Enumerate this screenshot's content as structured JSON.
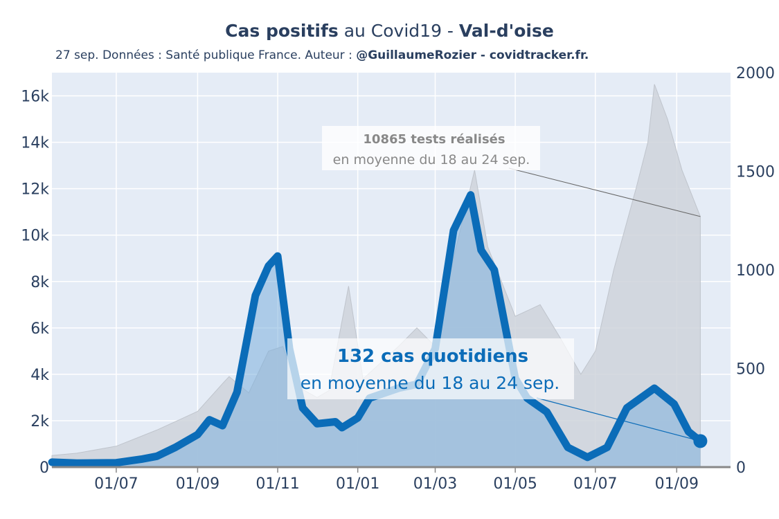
{
  "title": {
    "bold_1": "Cas positifs",
    "mid": " au Covid19 - ",
    "bold_2": "Val-d'oise"
  },
  "subtitle": {
    "plain": "27 sep. Données : Santé publique France. Auteur : ",
    "bold": "@GuillaumeRozier - covidtracker.fr."
  },
  "chart_data": {
    "type": "line",
    "x_axis": {
      "tick_labels": [
        "01/07",
        "01/09",
        "01/11",
        "01/01",
        "01/03",
        "01/05",
        "01/07",
        "01/09"
      ],
      "range": [
        "2020-05-13",
        "2021-10-12"
      ]
    },
    "y_left": {
      "tick_labels": [
        "0",
        "2k",
        "4k",
        "6k",
        "8k",
        "10k",
        "12k",
        "14k",
        "16k"
      ],
      "range": [
        0,
        17000
      ]
    },
    "y_right": {
      "tick_labels": [
        "0",
        "500",
        "1000",
        "1500",
        "2000"
      ],
      "range": [
        0,
        2000
      ]
    },
    "series": [
      {
        "axis": "left",
        "color": "#cfd3da",
        "points": [
          [
            "2020-05-13",
            500
          ],
          [
            "2020-06-01",
            600
          ],
          [
            "2020-07-01",
            900
          ],
          [
            "2020-08-01",
            1600
          ],
          [
            "2020-09-01",
            2400
          ],
          [
            "2020-09-20",
            3600
          ],
          [
            "2020-09-25",
            3900
          ],
          [
            "2020-10-10",
            3200
          ],
          [
            "2020-10-25",
            5000
          ],
          [
            "2020-11-05",
            5200
          ],
          [
            "2020-11-15",
            3500
          ],
          [
            "2020-12-01",
            3000
          ],
          [
            "2020-12-10",
            3300
          ],
          [
            "2020-12-25",
            7800
          ],
          [
            "2021-01-05",
            3800
          ],
          [
            "2021-02-01",
            5200
          ],
          [
            "2021-02-15",
            6000
          ],
          [
            "2021-03-01",
            5200
          ],
          [
            "2021-03-15",
            9000
          ],
          [
            "2021-03-31",
            12800
          ],
          [
            "2021-04-10",
            9500
          ],
          [
            "2021-05-01",
            6500
          ],
          [
            "2021-05-20",
            7000
          ],
          [
            "2021-06-05",
            5500
          ],
          [
            "2021-06-20",
            4000
          ],
          [
            "2021-07-01",
            5000
          ],
          [
            "2021-07-15",
            8500
          ],
          [
            "2021-08-01",
            12000
          ],
          [
            "2021-08-10",
            14000
          ],
          [
            "2021-08-15",
            16500
          ],
          [
            "2021-08-25",
            15000
          ],
          [
            "2021-09-05",
            12800
          ],
          [
            "2021-09-19",
            10800
          ]
        ]
      },
      {
        "axis": "right",
        "color": "#0b6cb8",
        "points": [
          [
            "2020-05-13",
            25
          ],
          [
            "2020-06-01",
            20
          ],
          [
            "2020-07-01",
            22
          ],
          [
            "2020-07-20",
            40
          ],
          [
            "2020-08-01",
            55
          ],
          [
            "2020-08-15",
            100
          ],
          [
            "2020-09-01",
            165
          ],
          [
            "2020-09-10",
            240
          ],
          [
            "2020-09-20",
            210
          ],
          [
            "2020-10-01",
            380
          ],
          [
            "2020-10-15",
            870
          ],
          [
            "2020-10-25",
            1020
          ],
          [
            "2020-11-01",
            1070
          ],
          [
            "2020-11-10",
            600
          ],
          [
            "2020-11-20",
            300
          ],
          [
            "2020-12-01",
            220
          ],
          [
            "2020-12-15",
            230
          ],
          [
            "2020-12-20",
            200
          ],
          [
            "2021-01-01",
            250
          ],
          [
            "2021-01-10",
            350
          ],
          [
            "2021-02-01",
            400
          ],
          [
            "2021-02-15",
            420
          ],
          [
            "2021-03-01",
            600
          ],
          [
            "2021-03-15",
            1200
          ],
          [
            "2021-03-28",
            1380
          ],
          [
            "2021-04-05",
            1100
          ],
          [
            "2021-04-15",
            1000
          ],
          [
            "2021-05-01",
            450
          ],
          [
            "2021-05-10",
            350
          ],
          [
            "2021-05-25",
            280
          ],
          [
            "2021-06-10",
            100
          ],
          [
            "2021-06-25",
            50
          ],
          [
            "2021-07-10",
            100
          ],
          [
            "2021-07-25",
            300
          ],
          [
            "2021-08-15",
            400
          ],
          [
            "2021-08-30",
            320
          ],
          [
            "2021-09-10",
            180
          ],
          [
            "2021-09-19",
            132
          ]
        ]
      }
    ],
    "annotations": [
      {
        "id": "tests",
        "bold": "10865 tests réalisés",
        "text": "en moyenne du 18 au 24 sep.",
        "color": "#888888"
      },
      {
        "id": "cases",
        "bold": "132 cas quotidiens",
        "text": "en moyenne du 18 au 24 sep.",
        "color": "#0b6cb8"
      }
    ]
  }
}
